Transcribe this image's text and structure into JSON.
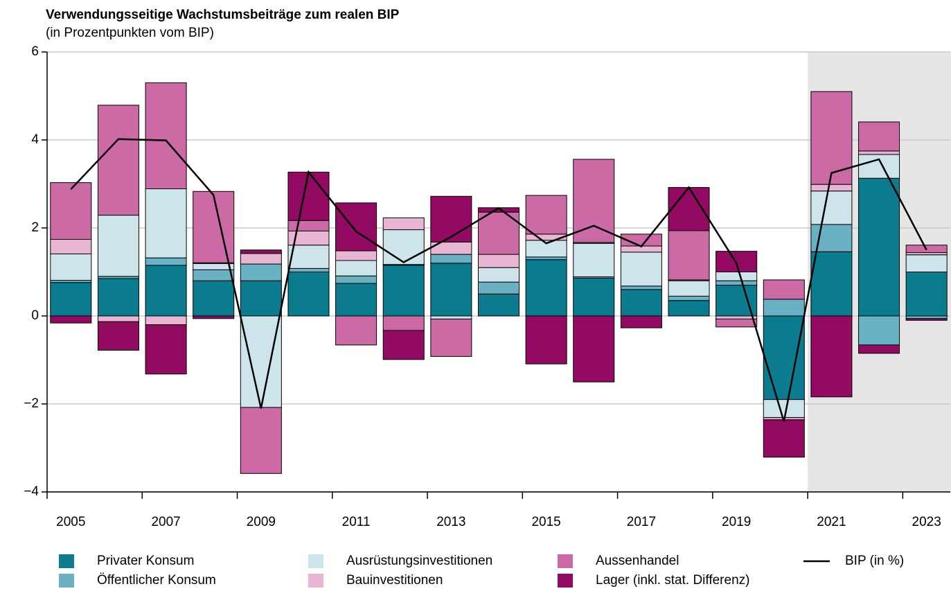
{
  "chart_data": {
    "type": "bar",
    "stacked": true,
    "title": "Verwendungsseitige Wachstumsbeiträge zum realen BIP",
    "subtitle": "(in Prozentpunkten vom BIP)",
    "categories": [
      "2005",
      null,
      "2007",
      null,
      "2009",
      null,
      "2011",
      null,
      "2013",
      null,
      "2015",
      null,
      "2017",
      null,
      "2019",
      null,
      "2021",
      null,
      "2023"
    ],
    "ylim": [
      -4,
      6
    ],
    "yticks": [
      {
        "value": -4,
        "label": "−4"
      },
      {
        "value": -2,
        "label": "−2"
      },
      0,
      2,
      4,
      6
    ],
    "grid": true,
    "series": [
      {
        "name": "Privater Konsum",
        "color": "#0b7b8e",
        "values": [
          0.76,
          0.85,
          1.15,
          0.8,
          0.8,
          1.0,
          0.74,
          1.15,
          1.2,
          0.5,
          1.28,
          0.86,
          0.6,
          0.35,
          0.7,
          -1.9,
          1.46,
          3.13,
          1.0
        ]
      },
      {
        "name": "Öffentlicher Konsum",
        "color": "#6ab2c3",
        "values": [
          0.05,
          0.05,
          0.17,
          0.25,
          0.38,
          0.08,
          0.17,
          0.02,
          0.2,
          0.27,
          0.06,
          0.03,
          0.08,
          0.1,
          0.1,
          0.38,
          0.62,
          -0.66,
          -0.06
        ]
      },
      {
        "name": "Ausrüstungsinvestitionen",
        "color": "#cde5ea",
        "values": [
          0.6,
          1.39,
          1.57,
          0.14,
          -2.08,
          0.53,
          0.35,
          0.79,
          -0.07,
          0.33,
          0.38,
          0.76,
          0.77,
          0.35,
          0.2,
          -0.41,
          0.76,
          0.54,
          0.39
        ]
      },
      {
        "name": "Bauinvestitionen",
        "color": "#e8b6d3",
        "values": [
          0.33,
          -0.13,
          -0.2,
          0.02,
          0.24,
          0.32,
          0.22,
          0.27,
          0.28,
          0.3,
          0.14,
          0.02,
          0.14,
          0.02,
          -0.07,
          -0.05,
          0.15,
          0.08,
          0.05
        ]
      },
      {
        "name": "Aussenhandel",
        "color": "#cc6aa6",
        "values": [
          1.29,
          2.5,
          2.41,
          1.62,
          -1.5,
          0.24,
          -0.66,
          -0.33,
          -0.85,
          0.96,
          0.88,
          1.89,
          0.27,
          1.12,
          -0.18,
          0.44,
          2.11,
          0.66,
          0.17
        ]
      },
      {
        "name": "Lager (inkl. stat. Differenz)",
        "color": "#930a62",
        "values": [
          -0.16,
          -0.65,
          -1.12,
          -0.06,
          0.08,
          1.1,
          1.09,
          -0.66,
          1.04,
          0.1,
          -1.09,
          -1.5,
          -0.27,
          0.98,
          0.47,
          -0.85,
          -1.84,
          -0.19,
          -0.04
        ]
      },
      {
        "name": "BIP (in %)",
        "type": "line",
        "color": "#000000",
        "values": [
          2.88,
          4.02,
          3.99,
          2.75,
          -2.1,
          3.27,
          1.92,
          1.22,
          1.8,
          2.45,
          1.65,
          2.05,
          1.58,
          2.92,
          1.2,
          -2.4,
          3.25,
          3.56,
          1.5
        ]
      }
    ]
  }
}
